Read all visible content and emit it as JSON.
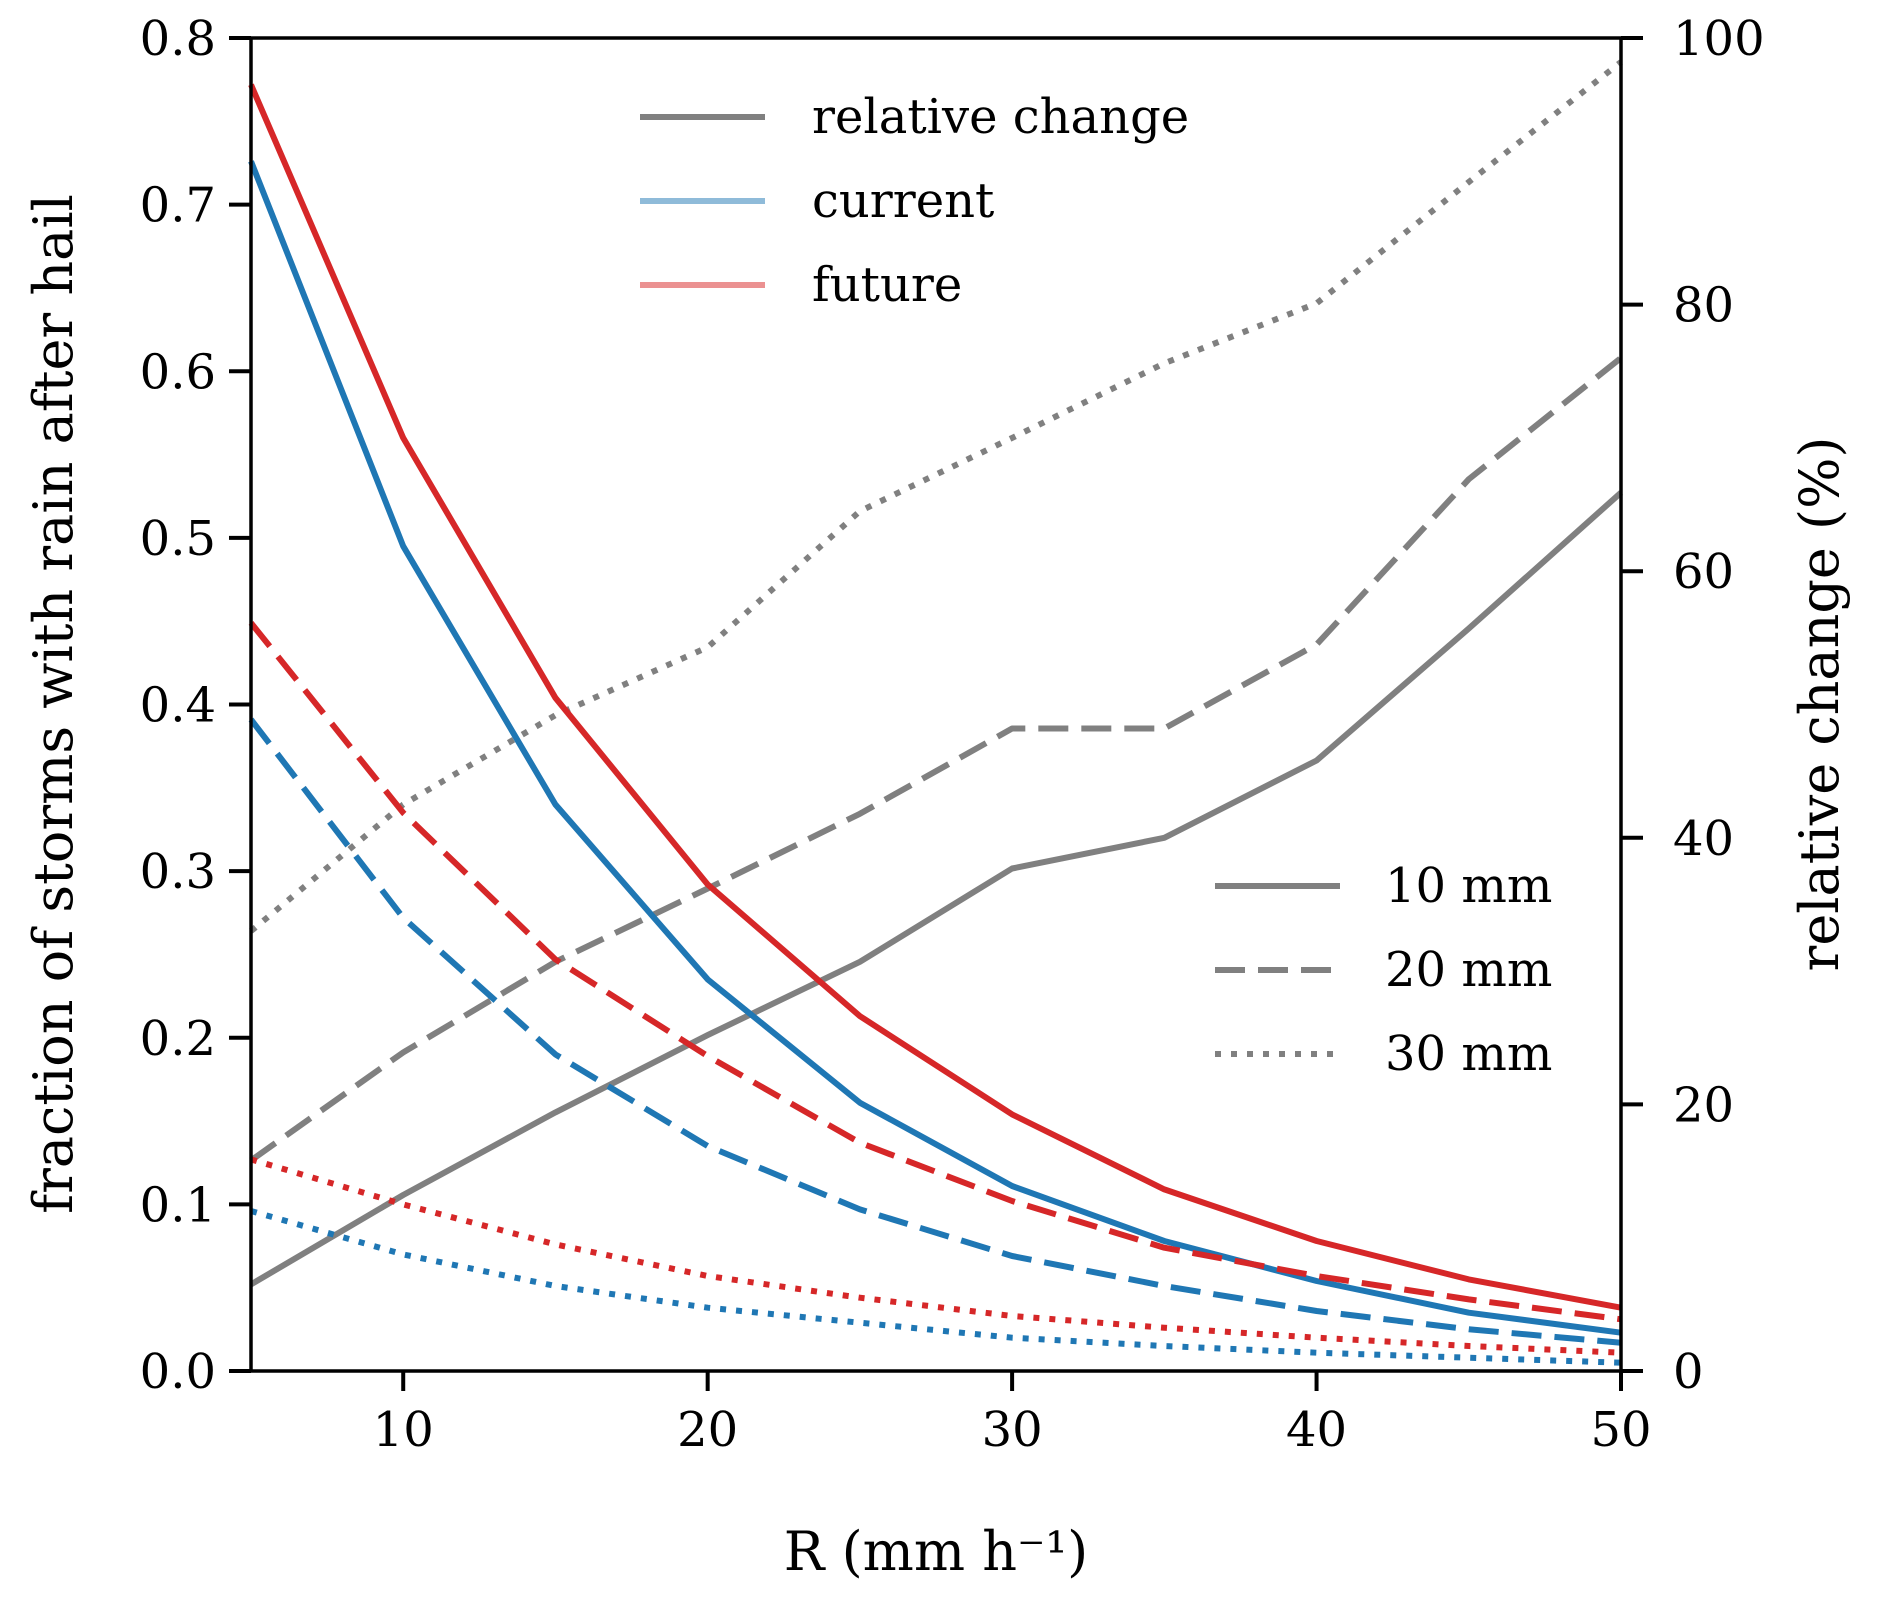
{
  "chart_data": {
    "type": "line",
    "title": "",
    "xlabel": "R (mm h⁻¹)",
    "ylabel": "fraction of storms with rain after hail",
    "ylabel_right": "relative change (%)",
    "xlim": [
      5,
      50
    ],
    "ylim": [
      0.0,
      0.8
    ],
    "ylim_right": [
      0,
      100
    ],
    "grid": false,
    "x": [
      5,
      10,
      15,
      20,
      25,
      30,
      35,
      40,
      45,
      50
    ],
    "xticks": [
      "10",
      "20",
      "30",
      "40",
      "50"
    ],
    "yticks": [
      "0.0",
      "0.1",
      "0.2",
      "0.3",
      "0.4",
      "0.5",
      "0.6",
      "0.7",
      "0.8"
    ],
    "yticks_right": [
      "0",
      "20",
      "40",
      "60",
      "80",
      "100"
    ],
    "colors": {
      "current": "#1f77b4",
      "future": "#d62728",
      "relative_change": "#808080",
      "current_legend": "#8fbbd9",
      "future_legend": "#eb9191"
    },
    "series": [
      {
        "name": "current 10 mm",
        "group": "current",
        "style": "solid",
        "axis": "left",
        "values": [
          0.726,
          0.495,
          0.34,
          0.235,
          0.161,
          0.111,
          0.078,
          0.054,
          0.035,
          0.023
        ]
      },
      {
        "name": "future 10 mm",
        "group": "future",
        "style": "solid",
        "axis": "left",
        "values": [
          0.772,
          0.56,
          0.404,
          0.292,
          0.213,
          0.154,
          0.109,
          0.078,
          0.055,
          0.038
        ]
      },
      {
        "name": "current 20 mm",
        "group": "current",
        "style": "dashed",
        "axis": "left",
        "values": [
          0.391,
          0.272,
          0.19,
          0.135,
          0.097,
          0.069,
          0.051,
          0.036,
          0.025,
          0.017
        ]
      },
      {
        "name": "future 20 mm",
        "group": "future",
        "style": "dashed",
        "axis": "left",
        "values": [
          0.449,
          0.335,
          0.247,
          0.189,
          0.137,
          0.102,
          0.074,
          0.057,
          0.043,
          0.031
        ]
      },
      {
        "name": "current 30 mm",
        "group": "current",
        "style": "dotted",
        "axis": "left",
        "values": [
          0.096,
          0.07,
          0.051,
          0.038,
          0.029,
          0.02,
          0.015,
          0.011,
          0.008,
          0.005
        ]
      },
      {
        "name": "future 30 mm",
        "group": "future",
        "style": "dotted",
        "axis": "left",
        "values": [
          0.127,
          0.1,
          0.076,
          0.057,
          0.044,
          0.033,
          0.026,
          0.02,
          0.015,
          0.011
        ]
      },
      {
        "name": "relative change 10 mm",
        "group": "relative_change",
        "style": "solid",
        "axis": "right",
        "values": [
          6.5,
          13.2,
          19.4,
          25.2,
          30.7,
          37.7,
          40.0,
          45.8,
          55.7,
          65.9
        ]
      },
      {
        "name": "relative change 20 mm",
        "group": "relative_change",
        "style": "dashed",
        "axis": "right",
        "values": [
          15.8,
          23.9,
          30.7,
          36.2,
          41.8,
          48.2,
          48.2,
          54.5,
          66.9,
          76.0
        ]
      },
      {
        "name": "relative change 30 mm",
        "group": "relative_change",
        "style": "dotted",
        "axis": "right",
        "values": [
          33.0,
          42.5,
          49.2,
          54.3,
          64.5,
          70.0,
          75.6,
          80.1,
          89.2,
          98.2
        ]
      }
    ],
    "legends": [
      {
        "placement": "top-center",
        "entries": [
          {
            "label": "relative change",
            "color_key": "relative_change",
            "style": "solid"
          },
          {
            "label": "current",
            "color_key": "current_legend",
            "style": "solid"
          },
          {
            "label": "future",
            "color_key": "future_legend",
            "style": "solid"
          }
        ]
      },
      {
        "placement": "center-right",
        "entries": [
          {
            "label": "10 mm",
            "color_key": "relative_change",
            "style": "solid"
          },
          {
            "label": "20 mm",
            "color_key": "relative_change",
            "style": "dashed"
          },
          {
            "label": "30 mm",
            "color_key": "relative_change",
            "style": "dotted"
          }
        ]
      }
    ]
  }
}
